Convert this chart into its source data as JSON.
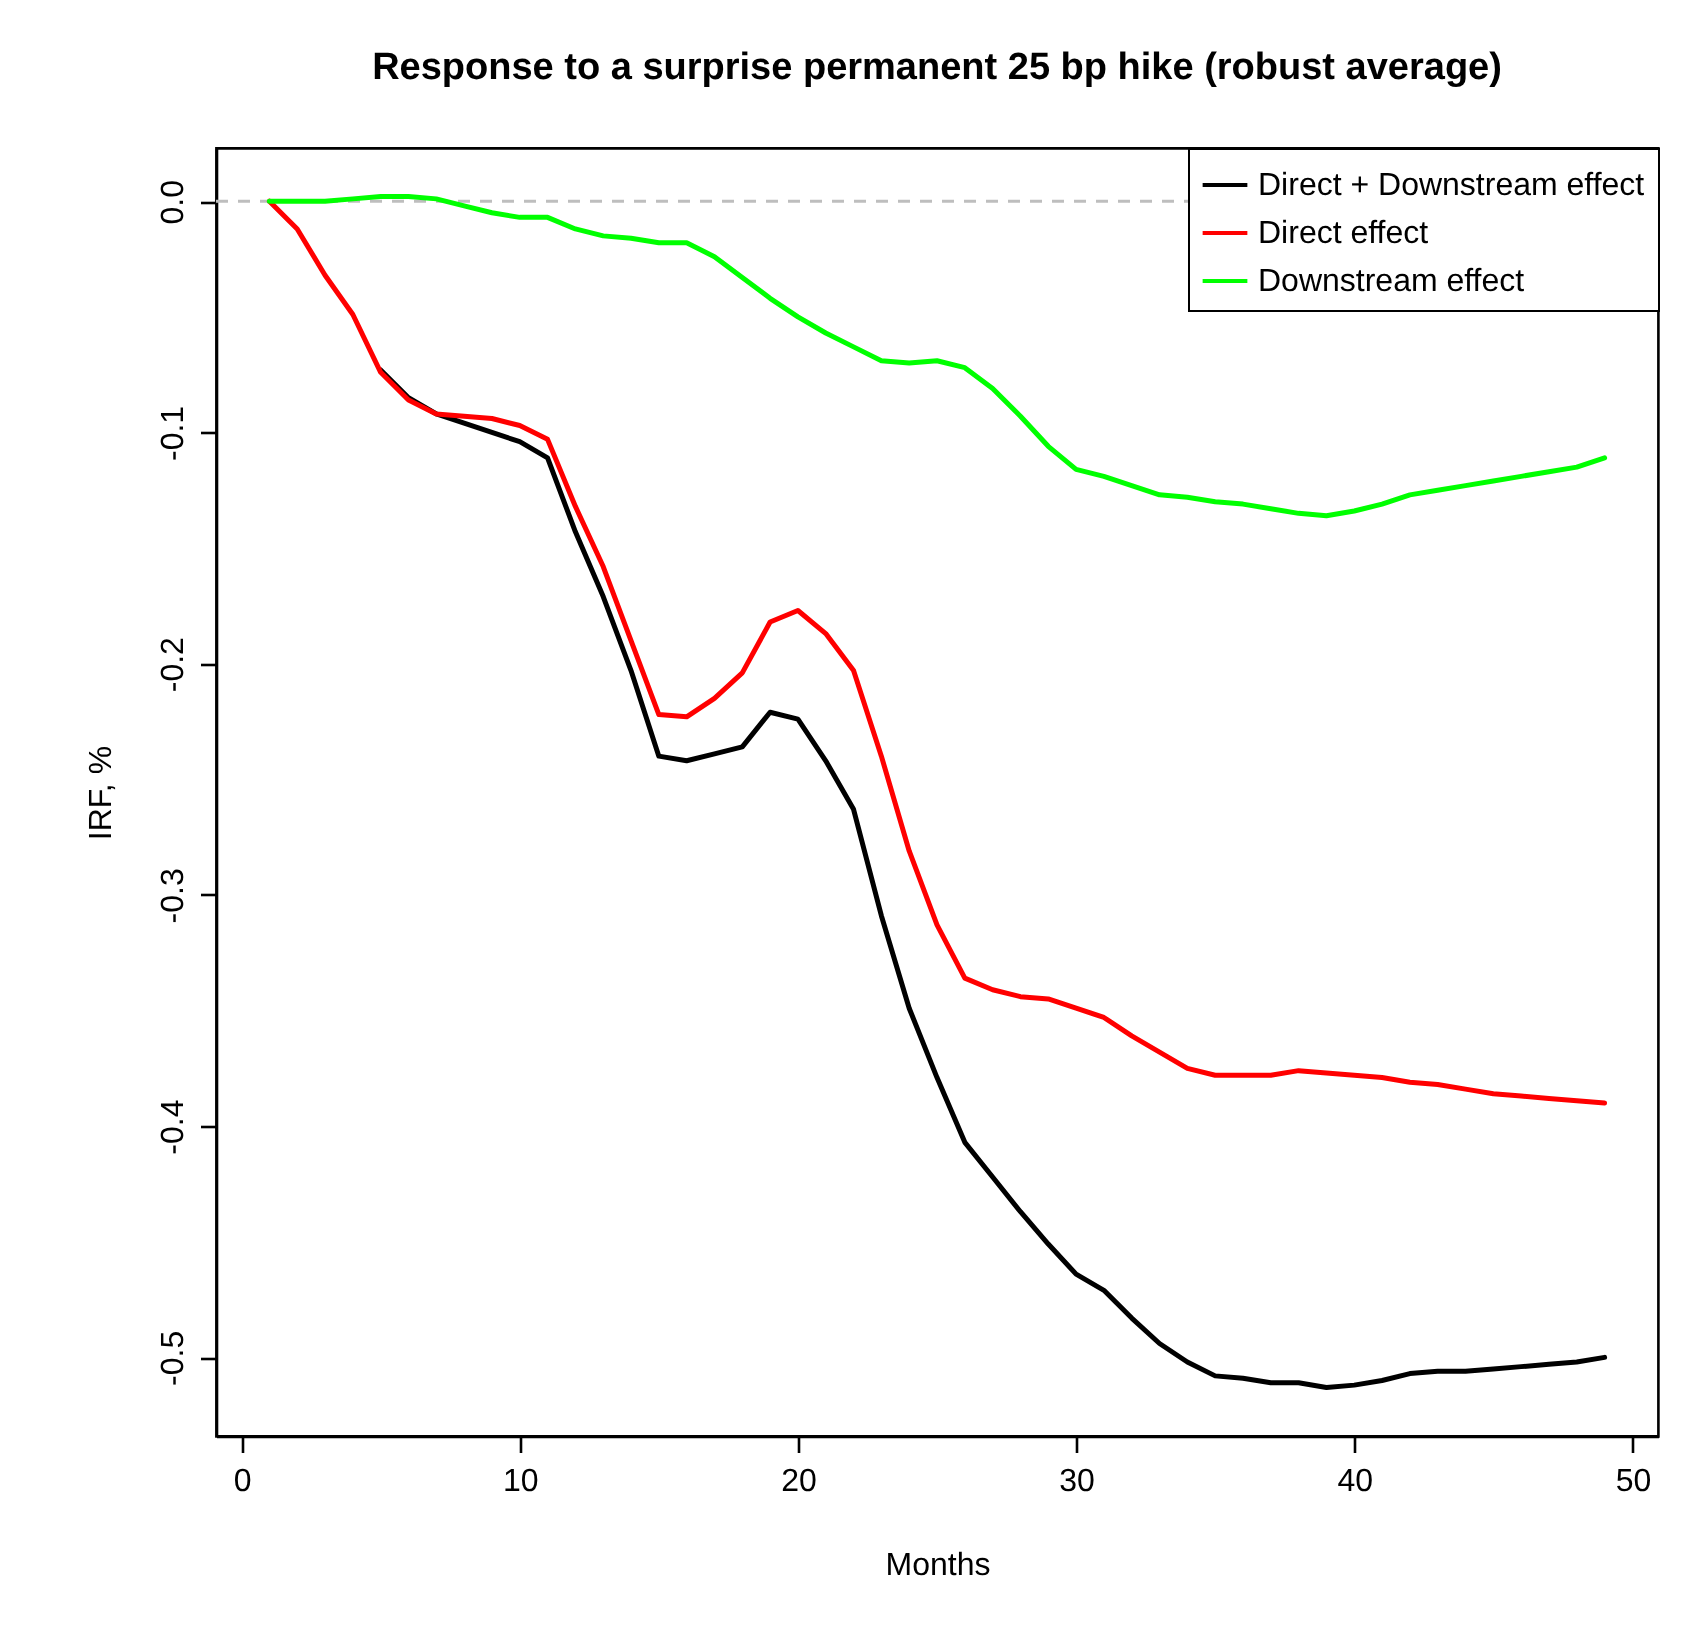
{
  "chart_data": {
    "type": "line",
    "title": "Response to a surprise permanent 25 bp hike (robust average)",
    "xlabel": "Months",
    "ylabel": "IRF, %",
    "x": [
      1,
      2,
      3,
      4,
      5,
      6,
      7,
      8,
      9,
      10,
      11,
      12,
      13,
      14,
      15,
      16,
      17,
      18,
      19,
      20,
      21,
      22,
      23,
      24,
      25,
      26,
      27,
      28,
      29,
      30,
      31,
      32,
      33,
      34,
      35,
      36,
      37,
      38,
      39,
      40,
      41,
      42,
      43,
      44,
      45,
      46,
      47,
      48,
      49
    ],
    "xlim": [
      -0.92,
      50.92
    ],
    "xticks": [
      0,
      10,
      20,
      30,
      40,
      50
    ],
    "ylim": [
      -0.534,
      0.023
    ],
    "yticks": [
      {
        "value": -0.5,
        "label": "-0.5"
      },
      {
        "value": -0.4,
        "label": "-0.4"
      },
      {
        "value": -0.3,
        "label": "-0.3"
      },
      {
        "value": -0.2,
        "label": "-0.2"
      },
      {
        "value": -0.1,
        "label": "-0.1"
      },
      {
        "value": 0,
        "label": "0.0"
      }
    ],
    "legend": "top right",
    "grid": false,
    "line_style": "solid",
    "ref_lines": [
      {
        "axis": "y",
        "value": 0,
        "color": "#bebebe",
        "line_style": "dashed"
      }
    ],
    "series": [
      {
        "name": "Direct + Downstream effect",
        "color": "#000000",
        "values": [
          null,
          null,
          null,
          null,
          -0.073,
          -0.085,
          -0.092,
          -0.096,
          -0.1,
          -0.104,
          -0.111,
          -0.143,
          -0.171,
          -0.203,
          -0.24,
          -0.242,
          -0.239,
          -0.236,
          -0.221,
          -0.224,
          -0.242,
          -0.263,
          -0.309,
          -0.349,
          -0.379,
          -0.407,
          -0.422,
          -0.437,
          -0.451,
          -0.464,
          -0.471,
          -0.483,
          -0.494,
          -0.502,
          -0.508,
          -0.509,
          -0.511,
          -0.511,
          -0.513,
          -0.512,
          -0.51,
          -0.507,
          -0.506,
          -0.506,
          -0.505,
          -0.504,
          -0.503,
          -0.502,
          -0.5
        ]
      },
      {
        "name": "Direct effect",
        "color": "#ff0000",
        "values": [
          0,
          -0.012,
          -0.032,
          -0.049,
          -0.074,
          -0.086,
          -0.092,
          -0.093,
          -0.094,
          -0.097,
          -0.103,
          -0.132,
          -0.158,
          -0.19,
          -0.222,
          -0.223,
          -0.215,
          -0.204,
          -0.182,
          -0.177,
          -0.187,
          -0.203,
          -0.24,
          -0.281,
          -0.313,
          -0.336,
          -0.341,
          -0.344,
          -0.345,
          -0.349,
          -0.353,
          -0.361,
          -0.368,
          -0.375,
          -0.378,
          -0.378,
          -0.378,
          -0.376,
          -0.377,
          -0.378,
          -0.379,
          -0.381,
          -0.382,
          -0.384,
          -0.386,
          -0.387,
          -0.388,
          -0.389,
          -0.39
        ]
      },
      {
        "name": "Downstream effect",
        "color": "#00ff00",
        "values": [
          0,
          0,
          0,
          0.001,
          0.002,
          0.002,
          0.001,
          -0.002,
          -0.005,
          -0.007,
          -0.007,
          -0.012,
          -0.015,
          -0.016,
          -0.018,
          -0.018,
          -0.024,
          -0.033,
          -0.042,
          -0.05,
          -0.057,
          -0.063,
          -0.069,
          -0.07,
          -0.069,
          -0.072,
          -0.081,
          -0.093,
          -0.106,
          -0.116,
          -0.119,
          -0.123,
          -0.127,
          -0.128,
          -0.13,
          -0.131,
          -0.133,
          -0.135,
          -0.136,
          -0.134,
          -0.131,
          -0.127,
          -0.125,
          -0.123,
          -0.121,
          -0.119,
          -0.117,
          -0.115,
          -0.111
        ]
      }
    ]
  }
}
